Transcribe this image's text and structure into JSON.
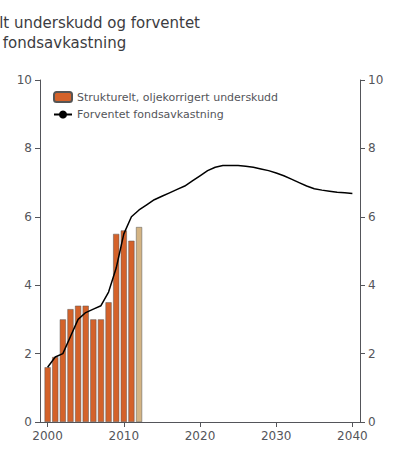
{
  "chart_data": {
    "type": "bar",
    "title": "Strukturelt underskudd og forventet\nfondsavkastning",
    "series": [
      {
        "name": "Strukturelt, oljekorrigert underskudd",
        "type": "bar",
        "colors": [
          "#D4622A",
          "#D4622A",
          "#D4622A",
          "#D4622A",
          "#D4622A",
          "#D4622A",
          "#D4622A",
          "#D4622A",
          "#D4622A",
          "#D4622A",
          "#D4622A",
          "#D4622A",
          "#D4B483"
        ],
        "x": [
          2000,
          2001,
          2002,
          2003,
          2004,
          2005,
          2006,
          2007,
          2008,
          2009,
          2010,
          2011,
          2012
        ],
        "values": [
          1.6,
          1.9,
          3.0,
          3.3,
          3.4,
          3.4,
          3.0,
          3.0,
          3.5,
          5.5,
          5.6,
          5.3,
          5.7
        ]
      },
      {
        "name": "Forventet fondsavkastning",
        "type": "line",
        "color": "#000000",
        "x": [
          2000,
          2001,
          2002,
          2003,
          2004,
          2005,
          2006,
          2007,
          2008,
          2009,
          2010,
          2011,
          2012,
          2013,
          2014,
          2015,
          2016,
          2017,
          2018,
          2019,
          2020,
          2021,
          2022,
          2023,
          2024,
          2025,
          2026,
          2027,
          2028,
          2029,
          2030,
          2031,
          2032,
          2033,
          2034,
          2035,
          2036,
          2037,
          2038,
          2039,
          2040
        ],
        "values": [
          1.6,
          1.9,
          2.0,
          2.5,
          3.0,
          3.2,
          3.3,
          3.4,
          3.8,
          4.5,
          5.5,
          6.0,
          6.2,
          6.35,
          6.5,
          6.6,
          6.7,
          6.8,
          6.9,
          7.05,
          7.2,
          7.35,
          7.45,
          7.5,
          7.5,
          7.5,
          7.48,
          7.45,
          7.4,
          7.35,
          7.28,
          7.2,
          7.1,
          7.0,
          6.9,
          6.82,
          6.78,
          6.75,
          6.72,
          6.7,
          6.68
        ]
      }
    ],
    "xlim": [
      1999,
      2041
    ],
    "xticks": [
      2000,
      2010,
      2020,
      2030,
      2040
    ],
    "ylim": [
      0,
      10
    ],
    "yticks": [
      0,
      2,
      4,
      6,
      8,
      10
    ],
    "y2lim": [
      0,
      10
    ],
    "y2ticks": [
      0,
      2,
      4,
      6,
      8,
      10
    ],
    "legend": "upper left",
    "grid": false
  }
}
